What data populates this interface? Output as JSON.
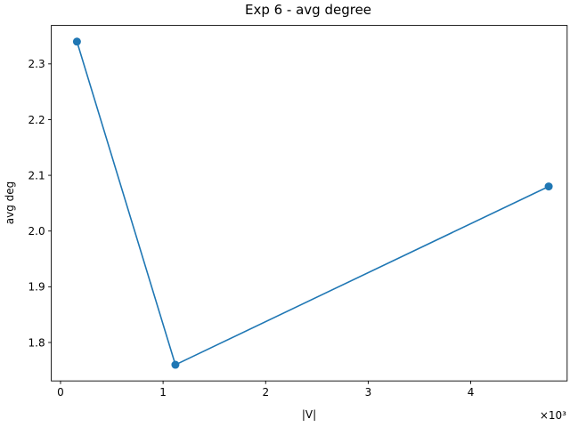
{
  "chart_data": {
    "type": "line",
    "title": "Exp 6 - avg degree",
    "xlabel": "|V|",
    "ylabel": "avg deg",
    "x_offset_label": "×10³",
    "xlim": [
      -0.09,
      4.94
    ],
    "ylim": [
      1.731,
      2.369
    ],
    "xticks": [
      0,
      1,
      2,
      3,
      4
    ],
    "xtick_labels": [
      "0",
      "1",
      "2",
      "3",
      "4"
    ],
    "yticks": [
      1.8,
      1.9,
      2.0,
      2.1,
      2.2,
      2.3
    ],
    "ytick_labels": [
      "1.8",
      "1.9",
      "2.0",
      "2.1",
      "2.2",
      "2.3"
    ],
    "grid": false,
    "series": [
      {
        "color": "#1f77b4",
        "marker": "circle",
        "x": [
          0.16,
          1.12,
          4.76
        ],
        "y": [
          2.34,
          1.76,
          2.08
        ]
      }
    ]
  }
}
